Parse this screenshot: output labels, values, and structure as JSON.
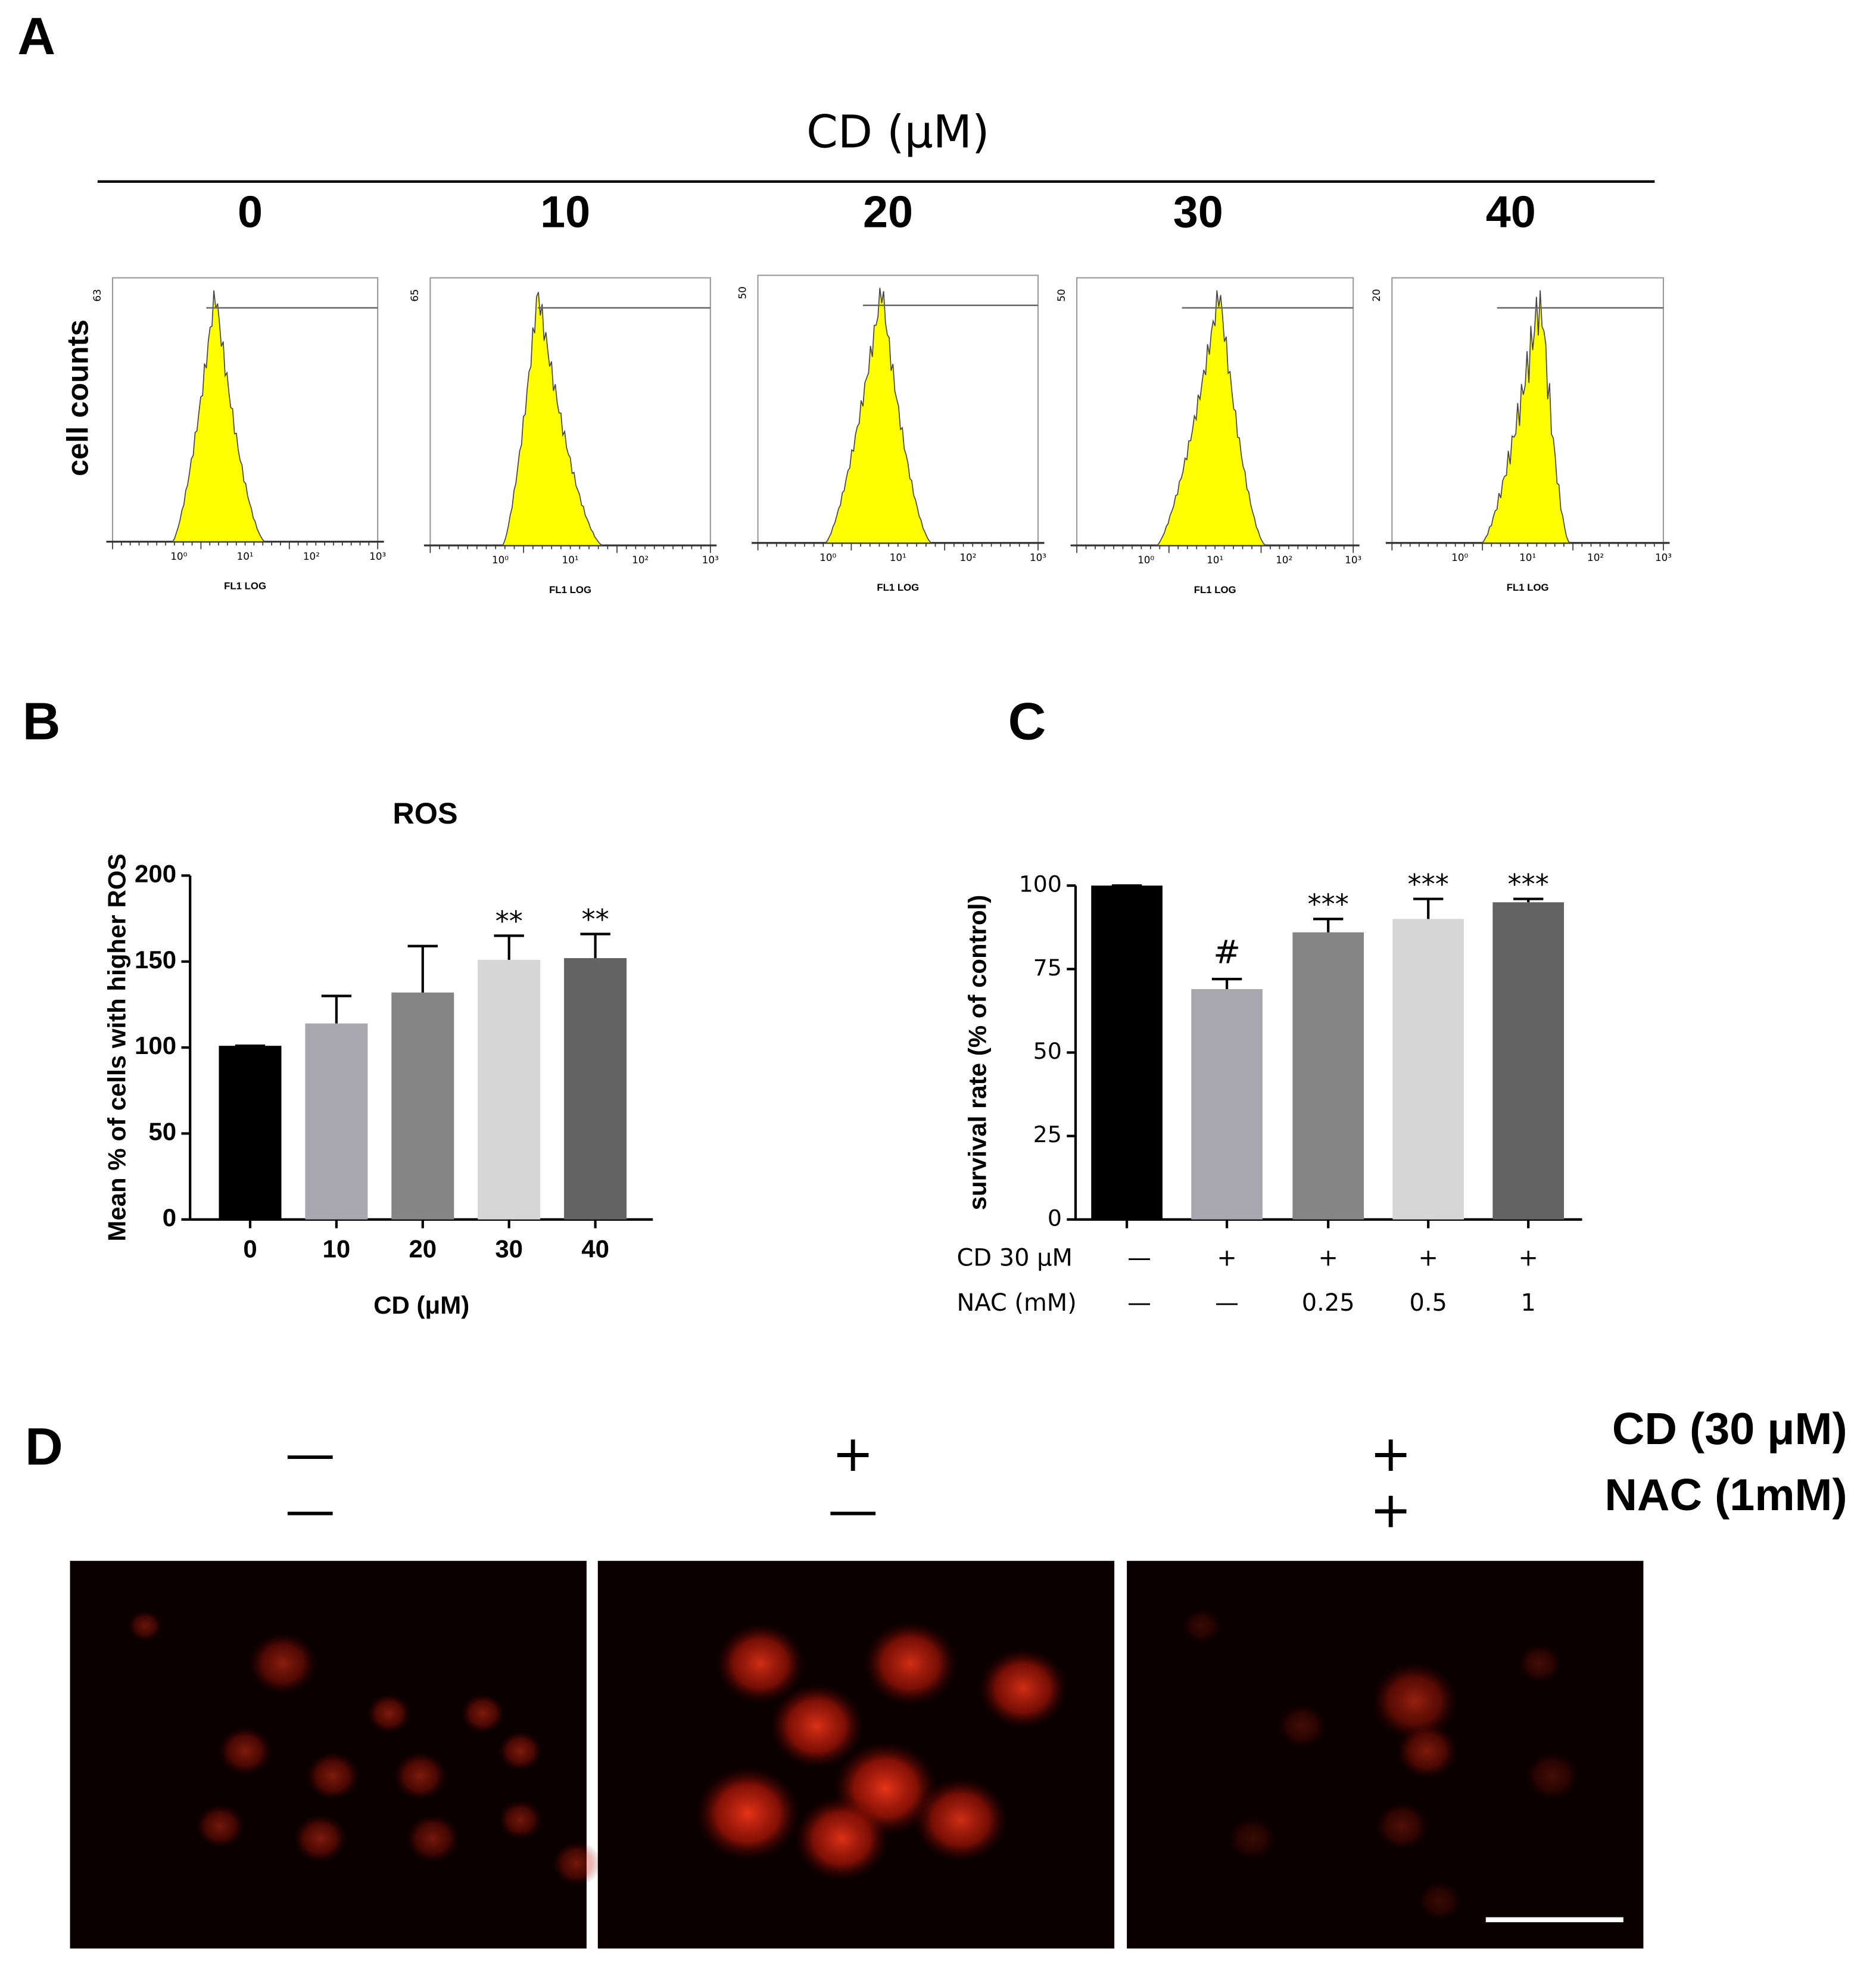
{
  "panel_labels": [
    "A",
    "B",
    "C",
    "D"
  ],
  "panel_a": {
    "title": "CD (μM)",
    "doses": [
      "0",
      "10",
      "20",
      "30",
      "40"
    ],
    "y_label": "cell counts",
    "x_label": "FL1 LOG",
    "x_tick_labels": [
      "10⁰",
      "10¹",
      "10²",
      "10³"
    ],
    "y_max_labels": [
      "63",
      "65",
      "50",
      "50",
      "20"
    ],
    "fill_color": "#ffff00"
  },
  "chart_data": [
    {
      "type": "bar",
      "title": "ROS",
      "y_label": "Mean % of cells with higher ROS",
      "x_label": "CD (μM)",
      "categories": [
        "0",
        "10",
        "20",
        "30",
        "40"
      ],
      "values": [
        101,
        114,
        132,
        151,
        152
      ],
      "errors": [
        0,
        16,
        27,
        14,
        14
      ],
      "annotations": [
        null,
        null,
        null,
        "**",
        "**"
      ],
      "colors": [
        "#000000",
        "#a8a7ad",
        "#858585",
        "#d6d6d6",
        "#636363"
      ],
      "ylim": [
        0,
        200
      ],
      "yticks": [
        0,
        50,
        100,
        150,
        200
      ]
    },
    {
      "type": "bar",
      "y_label": "survival rate (% of control)",
      "values": [
        100,
        69,
        86,
        90,
        95
      ],
      "errors": [
        0,
        3,
        4,
        6,
        1
      ],
      "annotations": [
        null,
        "#",
        "***",
        "***",
        "***"
      ],
      "colors": [
        "#000000",
        "#a8a7ad",
        "#858585",
        "#d6d6d6",
        "#636363"
      ],
      "treatment_rows": [
        {
          "label": "CD 30 μM",
          "values": [
            "—",
            "+",
            "+",
            "+",
            "+"
          ]
        },
        {
          "label": "NAC (mM)",
          "values": [
            "—",
            "—",
            "0.25",
            "0.5",
            "1"
          ]
        }
      ],
      "ylim": [
        0,
        100
      ],
      "yticks": [
        0,
        25,
        50,
        75,
        100
      ]
    }
  ],
  "panel_d": {
    "row_labels": [
      "CD (30 μM)",
      "NAC (1mM)"
    ],
    "columns": [
      {
        "cd": "—",
        "nac": "—"
      },
      {
        "cd": "+",
        "nac": "—"
      },
      {
        "cd": "+",
        "nac": "+"
      }
    ]
  }
}
